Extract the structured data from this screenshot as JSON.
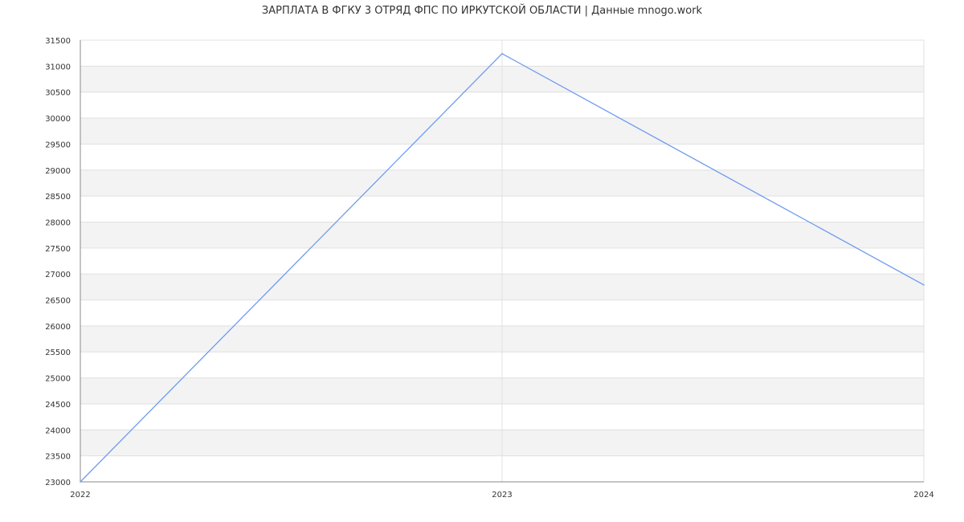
{
  "chart_data": {
    "type": "line",
    "title": "ЗАРПЛАТА В ФГКУ 3 ОТРЯД ФПС ПО ИРКУТСКОЙ ОБЛАСТИ | Данные mnogo.work",
    "xlabel": "",
    "ylabel": "",
    "x": [
      "2022",
      "2023",
      "2024"
    ],
    "series": [
      {
        "values": [
          23000,
          31240,
          26790
        ],
        "color": "#6f9bef"
      }
    ],
    "ylim": [
      23000,
      31500
    ],
    "ytick_step": 500,
    "yticks": [
      "23000",
      "23500",
      "24000",
      "24500",
      "25000",
      "25500",
      "26000",
      "26500",
      "27000",
      "27500",
      "28000",
      "28500",
      "29000",
      "29500",
      "30000",
      "30500",
      "31000",
      "31500"
    ],
    "grid": true,
    "band_color": "#f3f3f3",
    "grid_color": "#e0e0e0",
    "legend": "none"
  }
}
